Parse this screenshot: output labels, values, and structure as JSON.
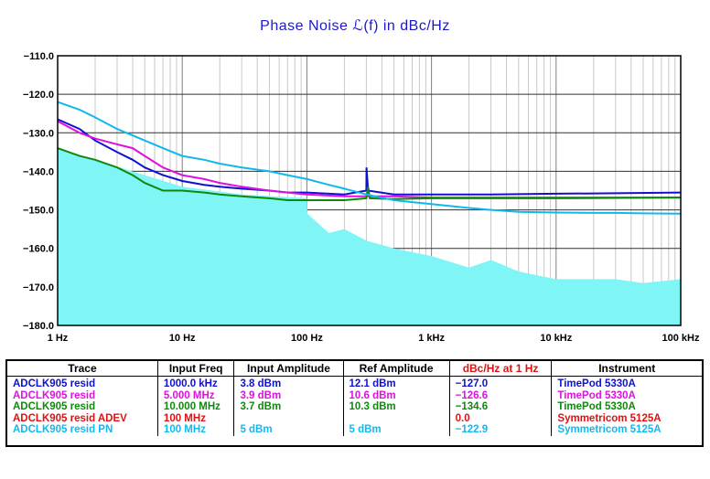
{
  "chart_data": {
    "type": "line",
    "title": "Phase  Noise ℒ(f) in dBc/Hz",
    "xscale": "log",
    "xlim": [
      1,
      100000
    ],
    "ylim": [
      -180,
      -110
    ],
    "x_tick_labels": [
      "1 Hz",
      "10 Hz",
      "100 Hz",
      "1 kHz",
      "10 kHz",
      "100 kHz"
    ],
    "y_tick_labels": [
      "−110.0",
      "−120.0",
      "−130.0",
      "−140.0",
      "−150.0",
      "−160.0",
      "−170.0",
      "−180.0"
    ],
    "grid": true,
    "series": [
      {
        "name": "ADCLK905 resid",
        "color": "#1010d0",
        "x": [
          1,
          1.5,
          2,
          3,
          4,
          5,
          7,
          10,
          15,
          20,
          30,
          50,
          70,
          100,
          200,
          300,
          301,
          310,
          500,
          1000,
          3000,
          10000,
          30000,
          100000
        ],
        "y": [
          -126.5,
          -129,
          -132,
          -135,
          -137,
          -139,
          -141,
          -142.5,
          -143.5,
          -144,
          -144.5,
          -145,
          -145.5,
          -145.5,
          -146,
          -145,
          -139,
          -145,
          -146,
          -146,
          -146,
          -145.8,
          -145.7,
          -145.5
        ]
      },
      {
        "name": "ADCLK905 resid",
        "color": "#e010e0",
        "x": [
          1,
          1.5,
          2,
          3,
          4,
          5,
          7,
          10,
          15,
          20,
          30,
          50,
          70,
          100,
          200,
          300,
          500,
          1000,
          3000,
          10000,
          30000,
          100000
        ],
        "y": [
          -127,
          -130,
          -131.5,
          -133,
          -134,
          -136,
          -139,
          -141,
          -142,
          -143,
          -144,
          -145,
          -145.5,
          -146,
          -146.5,
          -146.5,
          -146.5,
          -146.8,
          -146.8,
          -146.8,
          -146.8,
          -146.8
        ]
      },
      {
        "name": "ADCLK905 resid",
        "color": "#108810",
        "x": [
          1,
          1.5,
          2,
          3,
          4,
          5,
          7,
          10,
          15,
          20,
          30,
          50,
          70,
          100,
          200,
          300,
          310,
          320,
          500,
          1000,
          3000,
          10000,
          30000,
          100000
        ],
        "y": [
          -134,
          -136,
          -137,
          -139,
          -141,
          -143,
          -145,
          -145,
          -145.5,
          -146,
          -146.5,
          -147,
          -147.5,
          -147.5,
          -147.5,
          -147,
          -144,
          -147,
          -147.2,
          -147,
          -147,
          -147,
          -146.9,
          -146.8
        ]
      },
      {
        "name": "ADCLK905 resid ADEV",
        "color": "#e01010",
        "x": [
          1,
          1
        ],
        "y": [
          -110,
          -180
        ]
      },
      {
        "name": "ADCLK905 resid PN",
        "color": "#10b8f0",
        "x": [
          1,
          1.5,
          2,
          3,
          5,
          7,
          10,
          15,
          20,
          30,
          50,
          70,
          100,
          150,
          200,
          300,
          500,
          700,
          1000,
          2000,
          3000,
          5000,
          10000,
          20000,
          30000,
          50000,
          100000
        ],
        "y": [
          -122,
          -124,
          -126,
          -129,
          -132,
          -134,
          -136,
          -137,
          -138,
          -139,
          -140,
          -141,
          -142,
          -143.5,
          -144.5,
          -146,
          -147.5,
          -148,
          -148.5,
          -149.5,
          -150,
          -150.5,
          -150.7,
          -150.8,
          -150.8,
          -150.9,
          -151
        ]
      }
    ]
  },
  "legend": {
    "headers": [
      "Trace",
      "Input Freq",
      "Input Amplitude",
      "Ref Amplitude",
      "dBc/Hz at 1 Hz",
      "Instrument"
    ],
    "header_colors": [
      "#000000",
      "#000000",
      "#000000",
      "#000000",
      "#e01010",
      "#000000"
    ],
    "rows": [
      {
        "trace": "ADCLK905 resid",
        "input_freq": "1000.0 kHz",
        "input_amplitude": "3.8 dBm",
        "ref_amplitude": "12.1 dBm",
        "dbc_at_1hz": "−127.0",
        "instrument": "TimePod 5330A",
        "color": "#1010d0"
      },
      {
        "trace": "ADCLK905 resid",
        "input_freq": "5.000 MHz",
        "input_amplitude": "3.9 dBm",
        "ref_amplitude": "10.6 dBm",
        "dbc_at_1hz": "−126.6",
        "instrument": "TimePod 5330A",
        "color": "#e010e0"
      },
      {
        "trace": "ADCLK905 resid",
        "input_freq": "10.000 MHz",
        "input_amplitude": "3.7 dBm",
        "ref_amplitude": "10.3 dBm",
        "dbc_at_1hz": "−134.6",
        "instrument": "TimePod 5330A",
        "color": "#108810"
      },
      {
        "trace": "ADCLK905 resid ADEV",
        "input_freq": "100 MHz",
        "input_amplitude": "",
        "ref_amplitude": "",
        "dbc_at_1hz": "0.0",
        "instrument": "Symmetricom 5125A",
        "color": "#e01010"
      },
      {
        "trace": "ADCLK905 resid PN",
        "input_freq": "100 MHz",
        "input_amplitude": "5 dBm",
        "ref_amplitude": "5 dBm",
        "dbc_at_1hz": "−122.9",
        "instrument": "Symmetricom 5125A",
        "color": "#10b8f0"
      }
    ]
  }
}
